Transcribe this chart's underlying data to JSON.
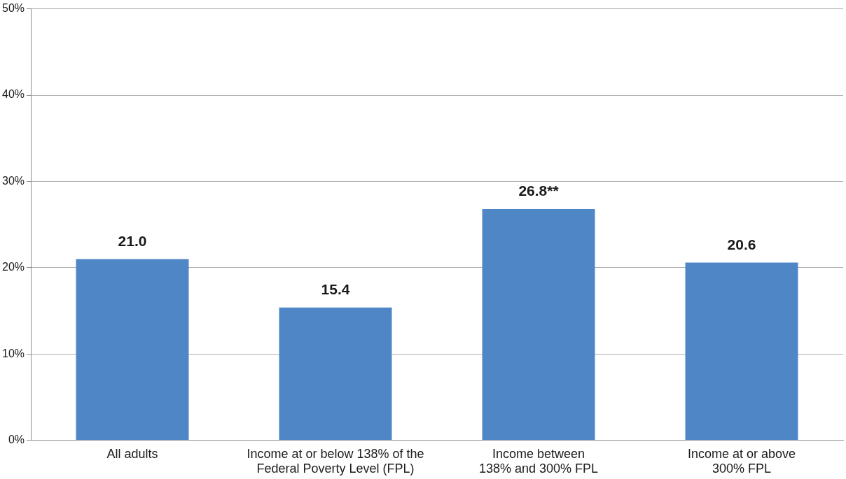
{
  "chart_data": {
    "type": "bar",
    "categories": [
      "All adults",
      "Income at or below 138% of the\nFederal Poverty Level (FPL)",
      "Income between\n138% and 300% FPL",
      "Income at or above\n300% FPL"
    ],
    "values": [
      21.0,
      15.4,
      26.8,
      20.6
    ],
    "value_labels": [
      "21.0",
      "15.4",
      "26.8**",
      "20.6"
    ],
    "color": "#4f86c6",
    "ylim": [
      0,
      50
    ],
    "yticks": [
      {
        "value": 0,
        "label": "0%"
      },
      {
        "value": 10,
        "label": "10%"
      },
      {
        "value": 20,
        "label": "20%"
      },
      {
        "value": 30,
        "label": "30%"
      },
      {
        "value": 40,
        "label": "40%"
      },
      {
        "value": 50,
        "label": "50%"
      }
    ],
    "grid": "y",
    "legend": false
  }
}
